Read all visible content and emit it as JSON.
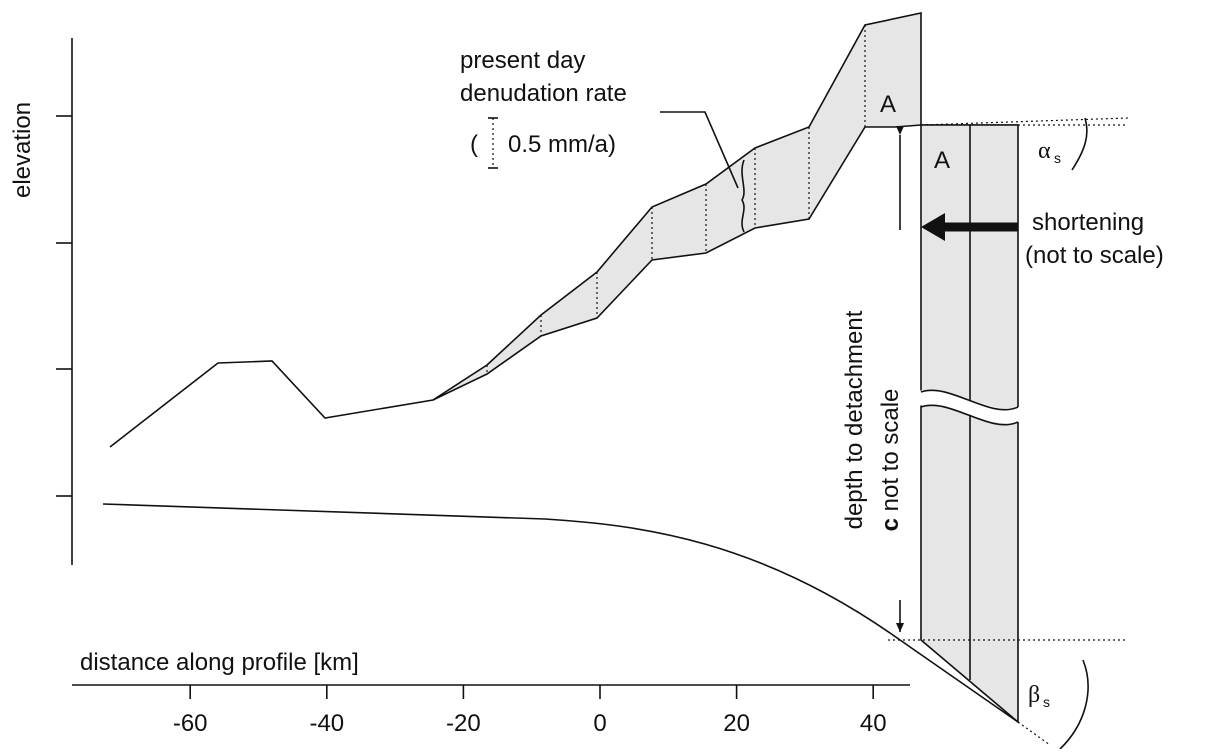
{
  "labels": {
    "denudation_1": "present day",
    "denudation_2": "denudation rate",
    "rate_open": "(",
    "rate": "0.5 mm/a)",
    "block_a_top": "A",
    "block_a_side": "A",
    "alpha": "α",
    "alpha_sub": "s",
    "shortening_1": "shortening",
    "shortening_2": "(not to scale)",
    "depth_1": "depth to detachment",
    "depth_c": "c",
    "depth_2": " not to scale",
    "y_axis": "elevation",
    "x_axis": "distance along profile [km]",
    "beta": "β",
    "beta_sub": "s"
  },
  "x_axis": {
    "ticks": [
      -60,
      -40,
      -20,
      0,
      20,
      40
    ]
  }
}
